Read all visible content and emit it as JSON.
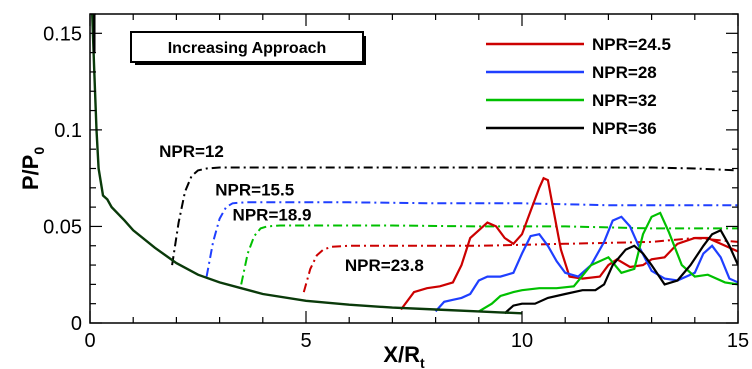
{
  "chart_data": {
    "type": "line",
    "xlabel": "X/R",
    "xlabel_sub": "t",
    "ylabel": "P/P",
    "ylabel_sub": "0",
    "xlim": [
      0,
      15
    ],
    "ylim": [
      0,
      0.16
    ],
    "xticks": [
      0,
      5,
      10,
      15
    ],
    "xtick_labels": [
      "0",
      "5",
      "10",
      "15"
    ],
    "yticks": [
      0,
      0.05,
      0.1,
      0.15
    ],
    "ytick_labels": [
      "0",
      "0.05",
      "0.1",
      "0.15"
    ],
    "grid": false,
    "legend_position": "top-right",
    "box_label": "Increasing Approach",
    "annotations": [
      {
        "text": "NPR=12",
        "x": 1.6,
        "y": 0.086
      },
      {
        "text": "NPR=15.5",
        "x": 2.9,
        "y": 0.066
      },
      {
        "text": "NPR=18.9",
        "x": 3.3,
        "y": 0.053
      },
      {
        "text": "NPR=23.8",
        "x": 5.9,
        "y": 0.027
      }
    ],
    "base_curve": {
      "x": [
        0.05,
        0.1,
        0.15,
        0.2,
        0.3,
        0.4,
        0.5,
        0.8,
        1.0,
        1.5,
        2.0,
        2.5,
        3.0,
        3.5,
        4.0,
        5.0,
        6.0,
        7.0,
        8.0,
        9.0,
        9.5,
        10.0
      ],
      "y": [
        0.16,
        0.13,
        0.1,
        0.08,
        0.066,
        0.064,
        0.06,
        0.053,
        0.048,
        0.039,
        0.031,
        0.025,
        0.021,
        0.018,
        0.015,
        0.0115,
        0.0095,
        0.008,
        0.007,
        0.006,
        0.0055,
        0.005
      ]
    },
    "dashdot_series": [
      {
        "name": "NPR=12",
        "color": "#000000",
        "x": [
          1.9,
          2.05,
          2.2,
          2.35,
          2.5,
          2.7,
          3.0,
          4.0,
          6.0,
          8.0,
          10.0,
          12.0,
          13.0,
          14.0,
          15.0
        ],
        "y": [
          0.03,
          0.052,
          0.068,
          0.076,
          0.079,
          0.08,
          0.0805,
          0.0805,
          0.0805,
          0.0805,
          0.0805,
          0.0805,
          0.0805,
          0.08,
          0.079
        ]
      },
      {
        "name": "NPR=15.5",
        "color": "#1f3fff",
        "x": [
          2.7,
          2.85,
          3.0,
          3.15,
          3.3,
          3.6,
          4.0,
          6.0,
          8.0,
          10.0,
          12.0,
          15.0
        ],
        "y": [
          0.024,
          0.042,
          0.054,
          0.06,
          0.062,
          0.0625,
          0.0625,
          0.0625,
          0.062,
          0.062,
          0.061,
          0.061
        ]
      },
      {
        "name": "NPR=18.9",
        "color": "#00c000",
        "x": [
          3.5,
          3.65,
          3.8,
          3.95,
          4.1,
          4.4,
          5.0,
          7.0,
          9.0,
          11.0,
          13.0,
          15.0
        ],
        "y": [
          0.02,
          0.036,
          0.045,
          0.049,
          0.05,
          0.0505,
          0.0505,
          0.0505,
          0.05,
          0.05,
          0.049,
          0.049
        ]
      },
      {
        "name": "NPR=23.8",
        "color": "#cc0000",
        "x": [
          4.95,
          5.1,
          5.25,
          5.4,
          5.6,
          6.0,
          7.0,
          9.0,
          11.0,
          13.0,
          14.0,
          15.0
        ],
        "y": [
          0.016,
          0.028,
          0.035,
          0.038,
          0.0395,
          0.04,
          0.04,
          0.04,
          0.041,
          0.042,
          0.044,
          0.042
        ]
      }
    ],
    "series": [
      {
        "name": "NPR=24.5",
        "color": "#cc0000",
        "x": [
          7.2,
          7.5,
          7.8,
          8.1,
          8.4,
          8.6,
          8.8,
          9.0,
          9.2,
          9.4,
          9.6,
          9.8,
          10.0,
          10.2,
          10.4,
          10.5,
          10.6,
          10.7,
          10.9,
          11.1,
          11.4,
          11.8,
          12.0,
          12.2,
          12.5,
          12.8,
          13.0,
          13.3,
          13.6,
          14.0,
          14.3,
          14.6,
          15.0
        ],
        "y": [
          0.007,
          0.016,
          0.018,
          0.019,
          0.021,
          0.03,
          0.044,
          0.048,
          0.052,
          0.05,
          0.044,
          0.041,
          0.046,
          0.058,
          0.07,
          0.075,
          0.074,
          0.062,
          0.038,
          0.024,
          0.023,
          0.024,
          0.03,
          0.033,
          0.029,
          0.03,
          0.033,
          0.034,
          0.041,
          0.044,
          0.044,
          0.041,
          0.037
        ]
      },
      {
        "name": "NPR=28",
        "color": "#1f3fff",
        "x": [
          8.0,
          8.2,
          8.4,
          8.6,
          8.8,
          9.0,
          9.2,
          9.5,
          9.8,
          10.0,
          10.2,
          10.4,
          10.6,
          10.8,
          11.0,
          11.3,
          11.6,
          11.9,
          12.1,
          12.3,
          12.5,
          12.7,
          13.0,
          13.3,
          13.6,
          14.0,
          14.2,
          14.4,
          14.6,
          14.8,
          15.0
        ],
        "y": [
          0.006,
          0.011,
          0.012,
          0.013,
          0.015,
          0.022,
          0.024,
          0.024,
          0.026,
          0.036,
          0.045,
          0.046,
          0.04,
          0.032,
          0.026,
          0.024,
          0.03,
          0.042,
          0.053,
          0.055,
          0.05,
          0.04,
          0.027,
          0.023,
          0.022,
          0.026,
          0.036,
          0.04,
          0.034,
          0.023,
          0.021
        ]
      },
      {
        "name": "NPR=32",
        "color": "#00c000",
        "x": [
          9.0,
          9.3,
          9.5,
          9.8,
          10.0,
          10.4,
          10.8,
          11.2,
          11.6,
          12.0,
          12.3,
          12.6,
          12.8,
          13.0,
          13.2,
          13.4,
          13.7,
          14.0,
          14.3,
          14.7,
          15.0
        ],
        "y": [
          0.006,
          0.01,
          0.014,
          0.016,
          0.017,
          0.018,
          0.018,
          0.019,
          0.03,
          0.034,
          0.026,
          0.028,
          0.046,
          0.055,
          0.057,
          0.047,
          0.03,
          0.024,
          0.025,
          0.021,
          0.02
        ]
      },
      {
        "name": "NPR=36",
        "color": "#000000",
        "x": [
          9.6,
          9.8,
          10.0,
          10.3,
          10.6,
          11.0,
          11.4,
          11.7,
          11.9,
          12.1,
          12.4,
          12.6,
          12.8,
          13.0,
          13.3,
          13.6,
          13.9,
          14.2,
          14.4,
          14.6,
          14.8,
          15.0
        ],
        "y": [
          0.005,
          0.009,
          0.01,
          0.01,
          0.013,
          0.015,
          0.017,
          0.017,
          0.02,
          0.03,
          0.038,
          0.04,
          0.036,
          0.03,
          0.02,
          0.022,
          0.03,
          0.04,
          0.046,
          0.048,
          0.04,
          0.03
        ]
      }
    ]
  }
}
